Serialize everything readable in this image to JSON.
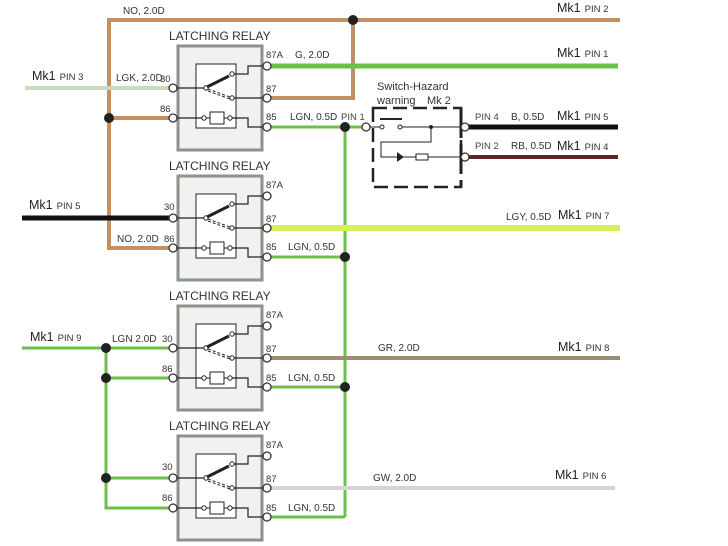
{
  "colors": {
    "brown": "#c39064",
    "green": "#6cbf4a",
    "pale_green": "#c8dcc0",
    "yellow_green": "#d8ef5a",
    "black": "#111111",
    "maroon": "#5a2a26",
    "grey_brown": "#9c8e74",
    "grey_white": "#d6d6d0",
    "relay_frame": "#8c928c"
  },
  "relays": [
    {
      "title": "LATCHING RELAY",
      "pin_30": "30",
      "pin_86": "86",
      "pin_87a": "87A",
      "pin_87": "87",
      "pin_85": "85"
    },
    {
      "title": "LATCHING RELAY",
      "pin_30": "30",
      "pin_86": "86",
      "pin_87a": "87A",
      "pin_87": "87",
      "pin_85": "85"
    },
    {
      "title": "LATCHING RELAY",
      "pin_30": "30",
      "pin_86": "86",
      "pin_87a": "87A",
      "pin_87": "87",
      "pin_85": "85"
    },
    {
      "title": "LATCHING RELAY",
      "pin_30": "30",
      "pin_86": "86",
      "pin_87a": "87A",
      "pin_87": "87",
      "pin_85": "85"
    }
  ],
  "wires": {
    "top": "NO, 2.0D",
    "relay1_30": "LGK, 2.0D",
    "relay1_87a": "G, 2.0D",
    "relay1_85": "LGN, 0.5D",
    "relay2_86": "NO, 2.0D",
    "relay2_87": "LGY, 0.5D",
    "relay2_85": "LGN, 0.5D",
    "relay3_30": "LGN 2.0D",
    "relay3_87": "GR, 2.0D",
    "relay3_85": "LGN, 0.5D",
    "relay4_87": "GW, 2.0D",
    "relay4_85": "LGN, 0.5D",
    "hazard_pin4": "B, 0.5D",
    "hazard_pin2": "RB, 0.5D"
  },
  "connectors": {
    "mk1_pin2": {
      "mk": "Mk1",
      "pin": "PIN 2"
    },
    "mk1_pin1": {
      "mk": "Mk1",
      "pin": "PIN 1"
    },
    "mk1_pin3": {
      "mk": "Mk1",
      "pin": "PIN 3"
    },
    "mk1_pin5_right": {
      "mk": "Mk1",
      "pin": "PIN 5"
    },
    "mk1_pin4": {
      "mk": "Mk1",
      "pin": "PIN 4"
    },
    "mk1_pin5_left": {
      "mk": "Mk1",
      "pin": "PIN 5"
    },
    "mk1_pin7": {
      "mk": "Mk1",
      "pin": "PIN 7"
    },
    "mk1_pin9": {
      "mk": "Mk1",
      "pin": "PIN 9"
    },
    "mk1_pin8": {
      "mk": "Mk1",
      "pin": "PIN 8"
    },
    "mk1_pin6": {
      "mk": "Mk1",
      "pin": "PIN 6"
    }
  },
  "hazard_switch": {
    "title_line1": "Switch-Hazard",
    "title_line2": "warning",
    "title_mk": "Mk 2",
    "pin1": "PIN 1",
    "pin4": "PIN 4",
    "pin2": "PIN 2"
  }
}
